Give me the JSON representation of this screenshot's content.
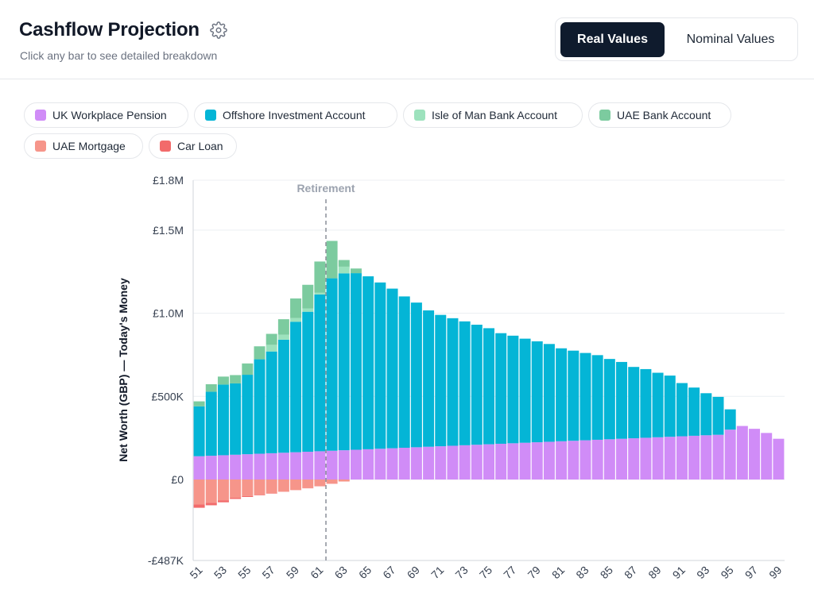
{
  "header": {
    "title": "Cashflow Projection",
    "subtitle": "Click any bar to see detailed breakdown",
    "settings_icon": "gear-icon"
  },
  "toggle": {
    "active_label": "Real Values",
    "inactive_label": "Nominal Values"
  },
  "legend": [
    {
      "label": "UK Workplace Pension",
      "color": "#d08cf7"
    },
    {
      "label": "Offshore Investment Account",
      "color": "#04b5d6"
    },
    {
      "label": "Isle of Man Bank Account",
      "color": "#9de2bd"
    },
    {
      "label": "UAE Bank Account",
      "color": "#7ccb9f"
    },
    {
      "label": "UAE Mortgage",
      "color": "#f6958a"
    },
    {
      "label": "Car Loan",
      "color": "#f26b6b"
    }
  ],
  "chart_data": {
    "type": "bar",
    "stacked": true,
    "ylabel": "Net Worth (GBP) — Today's Money",
    "ytick_labels": [
      "£1.8M",
      "£1.5M",
      "£1.0M",
      "£500K",
      "£0",
      "-£487K"
    ],
    "ytick_values": [
      1800000,
      1500000,
      1000000,
      500000,
      0,
      -487000
    ],
    "ylim": [
      -487000,
      1800000
    ],
    "x": [
      51,
      52,
      53,
      54,
      55,
      56,
      57,
      58,
      59,
      60,
      61,
      62,
      63,
      64,
      65,
      66,
      67,
      68,
      69,
      70,
      71,
      72,
      73,
      74,
      75,
      76,
      77,
      78,
      79,
      80,
      81,
      82,
      83,
      84,
      85,
      86,
      87,
      88,
      89,
      90,
      91,
      92,
      93,
      94,
      95,
      96,
      97,
      98,
      99
    ],
    "xtick_labels": [
      "51",
      "53",
      "55",
      "57",
      "59",
      "61",
      "63",
      "65",
      "67",
      "69",
      "71",
      "73",
      "75",
      "77",
      "79",
      "81",
      "83",
      "85",
      "87",
      "89",
      "91",
      "93",
      "95",
      "97",
      "99"
    ],
    "annotation": {
      "label": "Retirement",
      "x": 62
    },
    "grid": true,
    "series": [
      {
        "name": "UK Workplace Pension",
        "color": "#d08cf7",
        "values": [
          140000,
          143000,
          146000,
          149000,
          152000,
          155000,
          158000,
          161000,
          164000,
          167000,
          170000,
          173000,
          176000,
          179000,
          182000,
          185000,
          188000,
          191000,
          194000,
          197000,
          200000,
          203000,
          206000,
          209000,
          212000,
          215000,
          218000,
          221000,
          224000,
          227000,
          230000,
          233000,
          236000,
          239000,
          242000,
          245000,
          248000,
          251000,
          254000,
          257000,
          260000,
          263000,
          266000,
          269000,
          300000,
          322000,
          305000,
          280000,
          245000
        ]
      },
      {
        "name": "Offshore Investment Account",
        "color": "#04b5d6",
        "values": [
          300000,
          385000,
          425000,
          429000,
          478000,
          568000,
          612000,
          680000,
          785000,
          842000,
          943000,
          1037000,
          1064000,
          1062000,
          1040000,
          1000000,
          960000,
          910000,
          870000,
          820000,
          790000,
          767000,
          745000,
          722000,
          698000,
          665000,
          647000,
          626000,
          607000,
          588000,
          559000,
          542000,
          525000,
          509000,
          483000,
          462000,
          429000,
          413000,
          388000,
          368000,
          320000,
          290000,
          253000,
          228000,
          122000,
          0,
          0,
          0,
          0
        ]
      },
      {
        "name": "Isle of Man Bank Account",
        "color": "#9de2bd",
        "values": [
          0,
          0,
          0,
          0,
          0,
          0,
          40000,
          30000,
          22000,
          20000,
          10000,
          0,
          40000,
          0,
          0,
          0,
          0,
          0,
          0,
          0,
          0,
          0,
          0,
          0,
          0,
          0,
          0,
          0,
          0,
          0,
          0,
          0,
          0,
          0,
          0,
          0,
          0,
          0,
          0,
          0,
          0,
          0,
          0,
          0,
          0,
          0,
          0,
          0,
          0
        ]
      },
      {
        "name": "UAE Bank Account",
        "color": "#7ccb9f",
        "values": [
          30000,
          45000,
          48000,
          50000,
          68000,
          78000,
          66000,
          93000,
          118000,
          142000,
          188000,
          225000,
          40000,
          28000,
          0,
          0,
          0,
          0,
          0,
          0,
          0,
          0,
          0,
          0,
          0,
          0,
          0,
          0,
          0,
          0,
          0,
          0,
          0,
          0,
          0,
          0,
          0,
          0,
          0,
          0,
          0,
          0,
          0,
          0,
          0,
          0,
          0,
          0,
          0
        ]
      },
      {
        "name": "UAE Mortgage",
        "color": "#f6958a",
        "values": [
          -150000,
          -140000,
          -125000,
          -110000,
          -100000,
          -92000,
          -83000,
          -73000,
          -63000,
          -52000,
          -40000,
          -25000,
          -12000,
          0,
          0,
          0,
          0,
          0,
          0,
          0,
          0,
          0,
          0,
          0,
          0,
          0,
          0,
          0,
          0,
          0,
          0,
          0,
          0,
          0,
          0,
          0,
          0,
          0,
          0,
          0,
          0,
          0,
          0,
          0,
          0,
          0,
          0,
          0,
          0
        ]
      },
      {
        "name": "Car Loan",
        "color": "#f26b6b",
        "values": [
          -20000,
          -15000,
          -12000,
          -7000,
          -5000,
          -3000,
          -2000,
          -1000,
          -1000,
          -1000,
          -1000,
          -1000,
          0,
          0,
          0,
          0,
          0,
          0,
          0,
          0,
          0,
          0,
          0,
          0,
          0,
          0,
          0,
          0,
          0,
          0,
          0,
          0,
          0,
          0,
          0,
          0,
          0,
          0,
          0,
          0,
          0,
          0,
          0,
          0,
          0,
          0,
          0,
          0,
          0
        ]
      }
    ]
  }
}
